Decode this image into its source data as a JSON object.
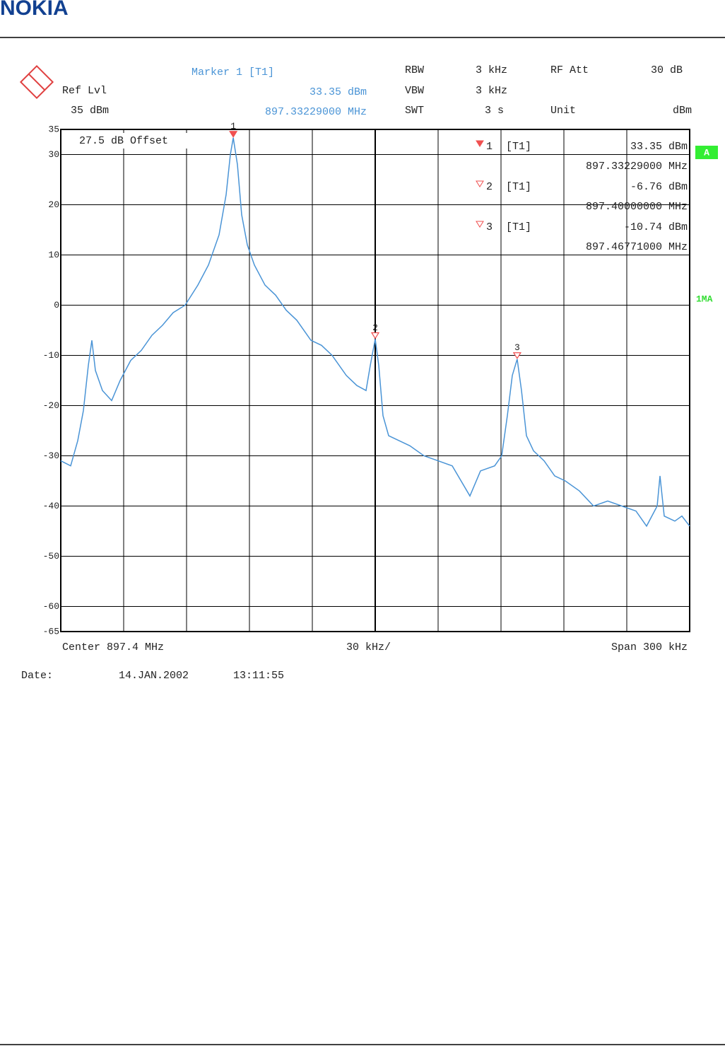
{
  "header": {
    "logo": "NOKIA"
  },
  "chart_data": {
    "type": "line",
    "ref_level_label": "Ref Lvl",
    "ref_level": "35 dBm",
    "marker_readout": {
      "title": "Marker 1 [T1]",
      "level": "33.35 dBm",
      "frequency": "897.33229000 MHz"
    },
    "settings": [
      {
        "label": "RBW",
        "value": "3 kHz"
      },
      {
        "label": "VBW",
        "value": "3 kHz"
      },
      {
        "label": "SWT",
        "value": "3 s"
      },
      {
        "label": "RF Att",
        "value": "30 dB"
      },
      {
        "label": "Unit",
        "value": "dBm"
      }
    ],
    "offset_note": "27.5 dB Offset",
    "trace_label": "A",
    "trace_mode": "1MA",
    "center_label": "Center 897.4 MHz",
    "division_label": "30 kHz/",
    "span_label": "Span 300 kHz",
    "date_label": "Date:",
    "date": "14.JAN.2002",
    "time": "13:11:55",
    "xlim": [
      897.25,
      897.55
    ],
    "ylim": [
      -65,
      35
    ],
    "yticks": [
      35,
      30,
      20,
      10,
      0,
      -10,
      -20,
      -30,
      -40,
      -50,
      -60,
      -65
    ],
    "grid": true,
    "x": [
      897.25,
      897.25472,
      897.2581,
      897.26079,
      897.26315,
      897.26483,
      897.26652,
      897.26989,
      897.27427,
      897.27831,
      897.28337,
      897.28843,
      897.29348,
      897.29854,
      897.3036,
      897.30933,
      897.31539,
      897.32045,
      897.32551,
      897.32888,
      897.3309,
      897.33229,
      897.33427,
      897.33629,
      897.33899,
      897.34236,
      897.34742,
      897.35247,
      897.35753,
      897.36258,
      897.36933,
      897.37438,
      897.37944,
      897.3862,
      897.39124,
      897.39562,
      897.39764,
      897.4,
      897.40169,
      897.40371,
      897.4064,
      897.41146,
      897.41652,
      897.42326,
      897.43,
      897.43674,
      897.44517,
      897.45022,
      897.45697,
      897.46034,
      897.46303,
      897.4654,
      897.46771,
      897.46977,
      897.47213,
      897.47551,
      897.48056,
      897.48562,
      897.49067,
      897.49742,
      897.50416,
      897.5109,
      897.51764,
      897.52438,
      897.52944,
      897.5345,
      897.53584,
      897.53787,
      897.54293,
      897.54629,
      897.55
    ],
    "series": [
      {
        "color": "#4a94d6",
        "values": [
          -31,
          -32,
          -27,
          -21,
          -12,
          -7,
          -13,
          -17,
          -19,
          -15,
          -11,
          -9,
          -6,
          -4,
          -1.5,
          0,
          4,
          8,
          14,
          22,
          30,
          33.35,
          28,
          18,
          12,
          8,
          4,
          2,
          -1,
          -3,
          -7,
          -8,
          -10,
          -14,
          -16,
          -17,
          -12,
          -6.76,
          -12,
          -22,
          -26,
          -27,
          -28,
          -30,
          -31,
          -32,
          -38,
          -33,
          -32,
          -30,
          -22,
          -14,
          -10.74,
          -17,
          -26,
          -29,
          -31,
          -34,
          -35,
          -37,
          -40,
          -39,
          -40,
          -41,
          -44,
          -40,
          -34,
          -42,
          -43,
          -42,
          -44
        ]
      }
    ],
    "marker_color": "#f05050",
    "markers": [
      {
        "label": "1",
        "tag": "[T1]",
        "filled": true,
        "x": 897.33229,
        "x_label": "897.33229000 MHz",
        "value": 33.35,
        "value_label": "33.35 dBm"
      },
      {
        "label": "2",
        "tag": "[T1]",
        "filled": false,
        "x": 897.4,
        "x_label": "897.40000000 MHz",
        "value": -6.76,
        "value_label": "-6.76 dBm"
      },
      {
        "label": "3",
        "tag": "[T1]",
        "filled": false,
        "x": 897.46771,
        "x_label": "897.46771000 MHz",
        "value": -10.74,
        "value_label": "-10.74 dBm"
      }
    ]
  }
}
